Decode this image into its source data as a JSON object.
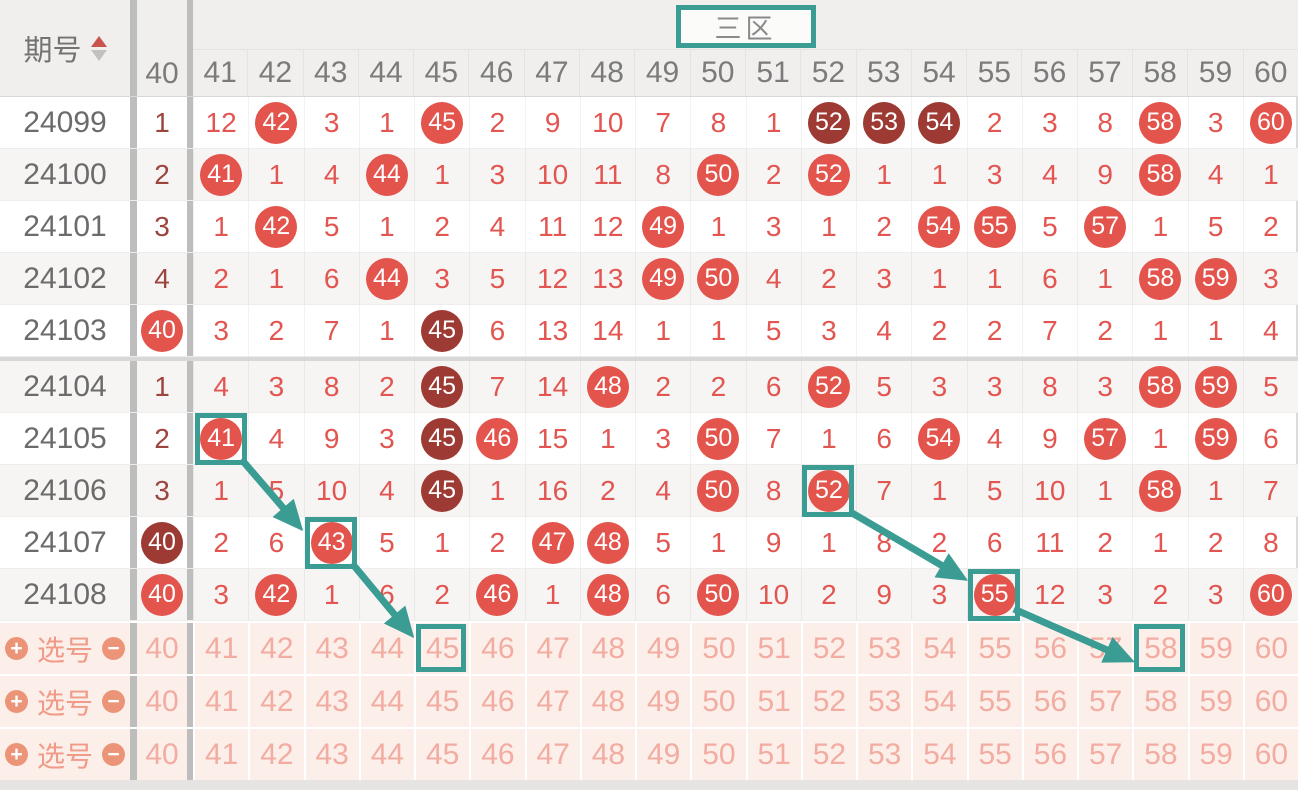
{
  "header": {
    "period_label": "期号",
    "zone_label": "三区",
    "columns": [
      40,
      41,
      42,
      43,
      44,
      45,
      46,
      47,
      48,
      49,
      50,
      51,
      52,
      53,
      54,
      55,
      56,
      57,
      58,
      59,
      60
    ]
  },
  "table": {
    "rows": [
      {
        "period": "24099",
        "values": [
          1,
          12,
          42,
          3,
          1,
          45,
          2,
          9,
          10,
          7,
          8,
          1,
          52,
          53,
          54,
          2,
          3,
          8,
          58,
          3,
          60
        ],
        "red": [
          42,
          45,
          58,
          60
        ],
        "dark": [
          52,
          53,
          54
        ]
      },
      {
        "period": "24100",
        "values": [
          2,
          41,
          1,
          4,
          44,
          1,
          3,
          10,
          11,
          8,
          50,
          2,
          52,
          1,
          1,
          3,
          4,
          9,
          58,
          4,
          1
        ],
        "red": [
          41,
          44,
          50,
          52,
          58
        ],
        "dark": []
      },
      {
        "period": "24101",
        "values": [
          3,
          1,
          42,
          5,
          1,
          2,
          4,
          11,
          12,
          49,
          1,
          3,
          1,
          2,
          54,
          55,
          5,
          57,
          1,
          5,
          2
        ],
        "red": [
          42,
          49,
          54,
          55,
          57
        ],
        "dark": []
      },
      {
        "period": "24102",
        "values": [
          4,
          2,
          1,
          6,
          44,
          3,
          5,
          12,
          13,
          49,
          50,
          4,
          2,
          3,
          1,
          1,
          6,
          1,
          58,
          59,
          3
        ],
        "red": [
          44,
          49,
          50,
          58,
          59
        ],
        "dark": []
      },
      {
        "period": "24103",
        "values": [
          40,
          3,
          2,
          7,
          1,
          45,
          6,
          13,
          14,
          1,
          1,
          5,
          3,
          4,
          2,
          2,
          7,
          2,
          1,
          1,
          4
        ],
        "red": [
          40
        ],
        "dark": [
          45
        ]
      },
      {
        "period": "24104",
        "values": [
          1,
          4,
          3,
          8,
          2,
          45,
          7,
          14,
          48,
          2,
          2,
          6,
          52,
          5,
          3,
          3,
          8,
          3,
          58,
          59,
          5
        ],
        "red": [
          48,
          52,
          58,
          59
        ],
        "dark": [
          45
        ]
      },
      {
        "period": "24105",
        "values": [
          2,
          41,
          4,
          9,
          3,
          45,
          46,
          15,
          1,
          3,
          50,
          7,
          1,
          6,
          54,
          4,
          9,
          57,
          1,
          59,
          6
        ],
        "red": [
          41,
          46,
          50,
          54,
          57,
          59
        ],
        "dark": [
          45
        ]
      },
      {
        "period": "24106",
        "values": [
          3,
          1,
          5,
          10,
          4,
          45,
          1,
          16,
          2,
          4,
          50,
          8,
          52,
          7,
          1,
          5,
          10,
          1,
          58,
          1,
          7
        ],
        "red": [
          50,
          52,
          58
        ],
        "dark": [
          45
        ]
      },
      {
        "period": "24107",
        "values": [
          40,
          2,
          6,
          43,
          5,
          1,
          2,
          47,
          48,
          5,
          1,
          9,
          1,
          8,
          2,
          6,
          11,
          2,
          1,
          2,
          8
        ],
        "red": [
          43,
          47,
          48
        ],
        "dark": [
          40
        ]
      },
      {
        "period": "24108",
        "values": [
          40,
          3,
          42,
          1,
          6,
          2,
          46,
          1,
          48,
          6,
          50,
          10,
          2,
          9,
          3,
          55,
          12,
          3,
          2,
          3,
          60
        ],
        "red": [
          40,
          42,
          46,
          48,
          50,
          55,
          60
        ],
        "dark": []
      }
    ]
  },
  "pick": {
    "label": "选号",
    "row_count": 3,
    "add_glyph": "+",
    "remove_glyph": "−"
  },
  "annotations": {
    "boxes": [
      {
        "id": "b41",
        "row": "24105",
        "col": 41
      },
      {
        "id": "b43",
        "row": "24107",
        "col": 43
      },
      {
        "id": "b52",
        "row": "24106",
        "col": 52
      },
      {
        "id": "b55",
        "row": "24108",
        "col": 55
      },
      {
        "id": "b45",
        "row": "pick-0",
        "col": 45
      },
      {
        "id": "b58",
        "row": "pick-0",
        "col": 58
      }
    ],
    "arrows": [
      {
        "from": "b41",
        "to": "b43",
        "fa": [
          0.9,
          0.9
        ],
        "ta": [
          -0.15,
          0.15
        ]
      },
      {
        "from": "b43",
        "to": "b45",
        "fa": [
          0.9,
          0.9
        ],
        "ta": [
          -0.15,
          0.15
        ]
      },
      {
        "from": "b52",
        "to": "b55",
        "fa": [
          0.9,
          0.9
        ],
        "ta": [
          -0.15,
          0.15
        ]
      },
      {
        "from": "b55",
        "to": "b58",
        "fa": [
          0.88,
          0.78
        ],
        "ta": [
          -0.15,
          0.72
        ]
      }
    ]
  },
  "colors": {
    "accent_teal": "#3a9c93",
    "circle_red": "#e2544c",
    "circle_dark": "#9d3a33",
    "miss_text": "#e25550",
    "zone40_text": "#9c453e",
    "header_bg": "#f0efee",
    "alt_row_bg": "#f6f5f4",
    "pick_bg": "#fcefe9",
    "pick_button": "#ec9477",
    "pick_label_text": "#f09a87",
    "pick_number_text": "#f2aca1",
    "divider_gray": "#bdbdbd"
  }
}
